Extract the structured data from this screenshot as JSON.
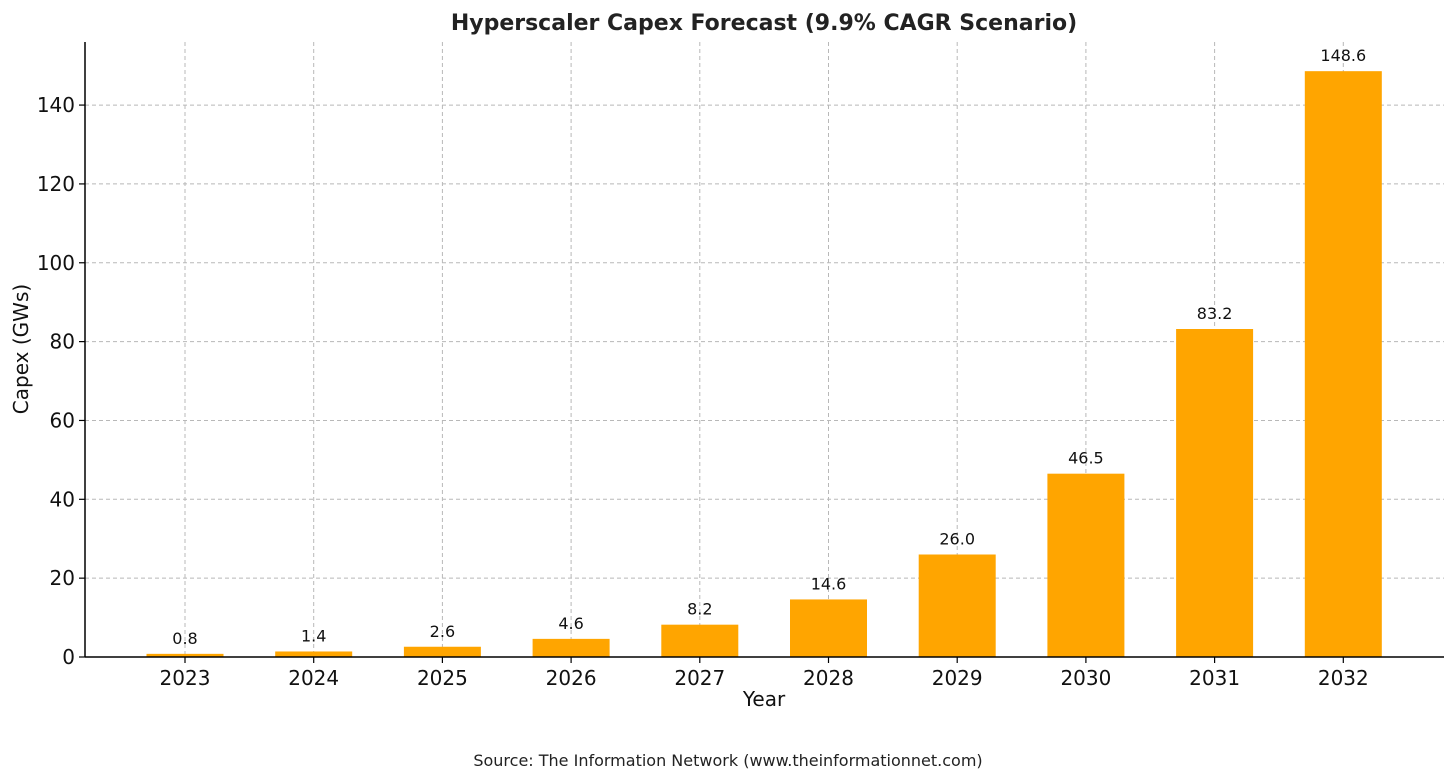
{
  "chart_data": {
    "type": "bar",
    "title": "Hyperscaler Capex Forecast (9.9% CAGR Scenario)",
    "xlabel": "Year",
    "ylabel": "Capex (GWs)",
    "categories": [
      "2023",
      "2024",
      "2025",
      "2026",
      "2027",
      "2028",
      "2029",
      "2030",
      "2031",
      "2032"
    ],
    "values": [
      0.8,
      1.4,
      2.6,
      4.6,
      8.2,
      14.6,
      26.0,
      46.5,
      83.2,
      148.6
    ],
    "data_labels": [
      "0.8",
      "1.4",
      "2.6",
      "4.6",
      "8.2",
      "14.6",
      "26.0",
      "46.5",
      "83.2",
      "148.6"
    ],
    "ylim": [
      0,
      156
    ],
    "yticks": [
      0,
      20,
      40,
      60,
      80,
      100,
      120,
      140
    ],
    "grid": true,
    "bar_color": "#FFA500"
  },
  "source": "Source: The Information Network (www.theinformationnet.com)"
}
